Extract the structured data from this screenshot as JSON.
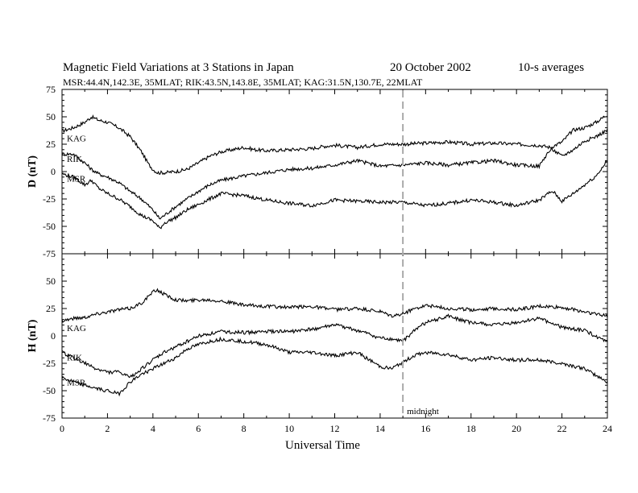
{
  "title": "Magnetic Field Variations at 3 Stations in Japan",
  "date": "20 October 2002",
  "averaging": "10-s averages",
  "subtitle": "MSR:44.4N,142.3E, 35MLAT;   RIK:43.5N,143.8E, 35MLAT;   KAG:31.5N,130.7E, 22MLAT",
  "chart_data": [
    {
      "type": "line",
      "panel": "top",
      "ylabel": "D (nT)",
      "ylim": [
        -75,
        75
      ],
      "yticks": [
        75,
        50,
        25,
        0,
        -25,
        -50,
        -75
      ],
      "xlim": [
        0,
        24
      ],
      "series": [
        {
          "name": "KAG",
          "x": [
            0,
            0.5,
            1,
            1.3,
            1.6,
            2,
            2.5,
            3,
            3.5,
            3.8,
            4,
            4.2,
            4.5,
            5,
            5.5,
            6,
            6.5,
            7,
            7.5,
            8,
            8.5,
            9,
            10,
            11,
            11.5,
            12,
            13,
            14,
            15,
            16,
            17,
            18,
            19,
            20,
            21,
            21.5,
            22,
            22.5,
            23,
            23.5,
            24
          ],
          "values": [
            37,
            40,
            45,
            50,
            47,
            45,
            40,
            32,
            18,
            7,
            2,
            -1,
            -1,
            0,
            2,
            8,
            14,
            18,
            20,
            22,
            20,
            19,
            20,
            21,
            23,
            24,
            22,
            25,
            25,
            26,
            27,
            25,
            26,
            25,
            24,
            22,
            27,
            38,
            40,
            45,
            52
          ]
        },
        {
          "name": "RIK",
          "x": [
            0,
            0.5,
            1,
            1.3,
            1.6,
            2,
            2.5,
            3,
            3.5,
            4,
            4.3,
            4.5,
            5,
            5.5,
            6,
            6.5,
            7,
            8,
            9,
            10,
            11,
            12,
            13,
            14,
            15,
            16,
            17,
            18,
            19,
            20,
            21,
            21.4,
            21.6,
            22,
            22.5,
            23,
            23.5,
            24
          ],
          "values": [
            16,
            16,
            8,
            2,
            -2,
            -5,
            -10,
            -18,
            -25,
            -35,
            -43,
            -40,
            -32,
            -25,
            -18,
            -12,
            -8,
            -4,
            -1,
            2,
            3,
            6,
            10,
            5,
            6,
            8,
            6,
            8,
            10,
            6,
            5,
            18,
            20,
            14,
            20,
            28,
            32,
            38
          ]
        },
        {
          "name": "MSR",
          "x": [
            0,
            0.5,
            1,
            1.3,
            1.6,
            2,
            2.5,
            3,
            3.5,
            4,
            4.3,
            4.5,
            5,
            5.5,
            6,
            6.5,
            7,
            8,
            9,
            10,
            11,
            12,
            13,
            14,
            15,
            16,
            17,
            18,
            19,
            20,
            21,
            21.4,
            21.6,
            22,
            22.5,
            23,
            23.5,
            24
          ],
          "values": [
            -2,
            -5,
            -12,
            -8,
            -15,
            -20,
            -25,
            -32,
            -40,
            -45,
            -52,
            -47,
            -42,
            -35,
            -30,
            -25,
            -20,
            -22,
            -26,
            -29,
            -31,
            -26,
            -27,
            -28,
            -28,
            -31,
            -29,
            -26,
            -28,
            -31,
            -26,
            -20,
            -18,
            -27,
            -20,
            -12,
            -4,
            10
          ]
        }
      ]
    },
    {
      "type": "line",
      "panel": "bottom",
      "ylabel": "H (nT)",
      "ylim": [
        -75,
        75
      ],
      "yticks": [
        50,
        25,
        0,
        -25,
        -50,
        -75
      ],
      "xlim": [
        0,
        24
      ],
      "xticks": [
        0,
        2,
        4,
        6,
        8,
        10,
        12,
        14,
        15,
        16,
        18,
        20,
        22,
        24
      ],
      "xlabel": "Universal Time",
      "series": [
        {
          "name": "KAG",
          "x": [
            0,
            0.5,
            1,
            1.5,
            2,
            2.5,
            3,
            3.5,
            4,
            4.2,
            4.5,
            5,
            5.5,
            6,
            6.5,
            7,
            8,
            9,
            10,
            11,
            12,
            13,
            14,
            14.5,
            15,
            15.5,
            16,
            17,
            18,
            19,
            20,
            21,
            22,
            23,
            24
          ],
          "values": [
            14,
            16,
            17,
            20,
            22,
            24,
            25,
            30,
            40,
            42,
            38,
            33,
            32,
            33,
            33,
            32,
            28,
            27,
            26,
            27,
            24,
            25,
            22,
            18,
            20,
            25,
            28,
            25,
            24,
            25,
            24,
            27,
            26,
            22,
            18
          ]
        },
        {
          "name": "RIK",
          "x": [
            0,
            0.5,
            1,
            1.5,
            2,
            2.5,
            3,
            3.5,
            4,
            4.5,
            5,
            5.5,
            6,
            6.5,
            7,
            8,
            9,
            10,
            11,
            12,
            13,
            14,
            14.5,
            15,
            15.5,
            16,
            17,
            18,
            19,
            20,
            21,
            22,
            23,
            24
          ],
          "values": [
            -15,
            -20,
            -25,
            -30,
            -33,
            -33,
            -38,
            -30,
            -22,
            -15,
            -10,
            -5,
            0,
            2,
            4,
            3,
            4,
            4,
            6,
            10,
            5,
            -2,
            -3,
            -5,
            5,
            12,
            18,
            12,
            10,
            12,
            16,
            8,
            5,
            -6
          ]
        },
        {
          "name": "MSR",
          "x": [
            0,
            0.5,
            1,
            1.5,
            2,
            2.5,
            3,
            3.5,
            4,
            4.5,
            5,
            5.5,
            6,
            6.5,
            7,
            8,
            9,
            10,
            11,
            12,
            13,
            14,
            14.5,
            15,
            15.5,
            16,
            17,
            18,
            19,
            20,
            21,
            22,
            23,
            24
          ],
          "values": [
            -38,
            -42,
            -45,
            -48,
            -50,
            -53,
            -42,
            -35,
            -30,
            -25,
            -20,
            -12,
            -8,
            -5,
            -3,
            -5,
            -8,
            -15,
            -15,
            -18,
            -15,
            -28,
            -30,
            -24,
            -18,
            -15,
            -17,
            -22,
            -20,
            -22,
            -22,
            -25,
            -30,
            -42
          ]
        }
      ]
    }
  ],
  "midnight": {
    "x": 15,
    "label": "midnight"
  }
}
